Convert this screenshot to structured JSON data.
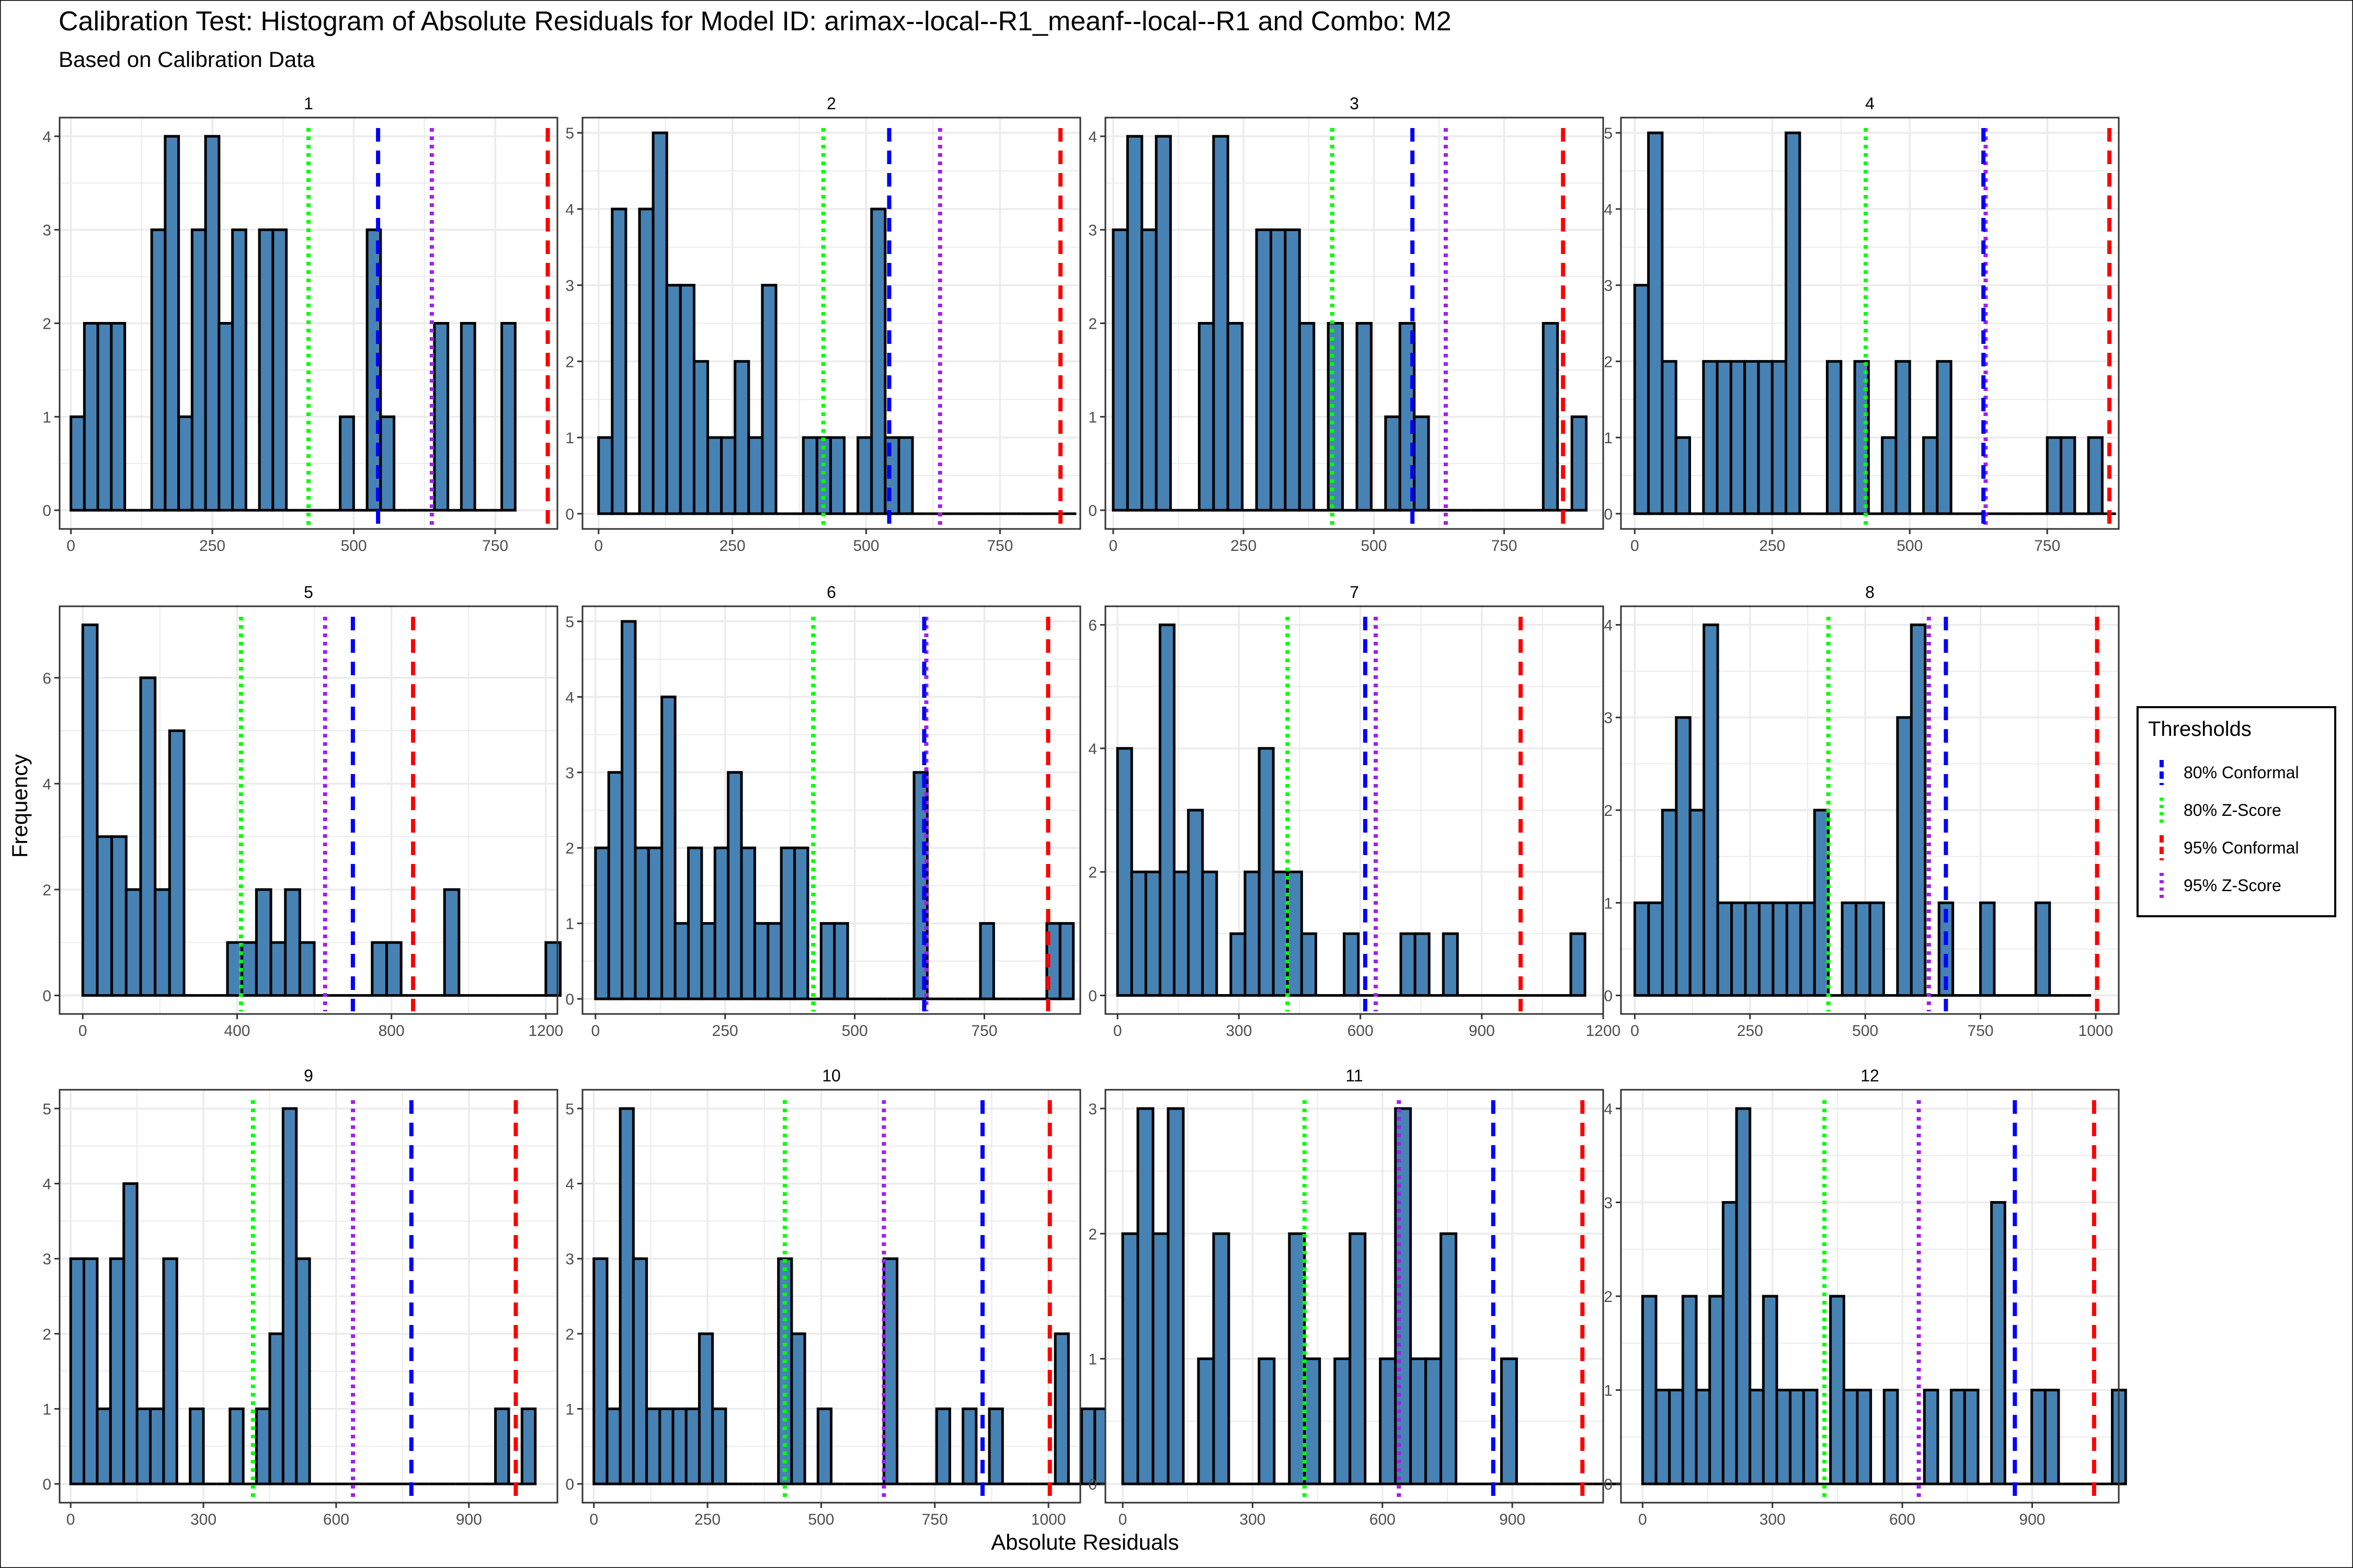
{
  "title": "Calibration Test: Histogram of Absolute Residuals for Model ID: arimax--local--R1_meanf--local--R1 and Combo: M2",
  "subtitle": "Based on Calibration Data",
  "xlabel": "Absolute Residuals",
  "ylabel": "Frequency",
  "legend": {
    "title": "Thresholds",
    "placement": "right",
    "items": [
      {
        "key": "c80",
        "label": "80% Conformal",
        "color": "#0000FF",
        "dash": "dashed"
      },
      {
        "key": "z80",
        "label": "80% Z-Score",
        "color": "#00FF00",
        "dash": "dotted"
      },
      {
        "key": "c95",
        "label": "95% Conformal",
        "color": "#FF0000",
        "dash": "dashed"
      },
      {
        "key": "z95",
        "label": "95% Z-Score",
        "color": "#A020F0",
        "dash": "dotted"
      }
    ]
  },
  "colors": {
    "bar_fill": "#4682B4",
    "bar_outline": "#000000",
    "grid": "#EBEBEB",
    "panel_border": "#333333"
  },
  "chart_data": {
    "type": "bar",
    "grid": true,
    "facet_layout": "3 rows x 4 columns",
    "panels": [
      {
        "label": "1",
        "binwidth": 23.8,
        "x_start": 0,
        "xlim": [
          -20,
          860
        ],
        "ylim": [
          -0.2,
          4.2
        ],
        "xticks": [
          0,
          250,
          500,
          750
        ],
        "yticks": [
          0,
          1,
          2,
          3,
          4
        ],
        "counts": [
          1,
          2,
          2,
          2,
          0,
          0,
          3,
          4,
          1,
          3,
          4,
          2,
          3,
          0,
          3,
          3,
          0,
          0,
          0,
          0,
          1,
          0,
          3,
          1,
          0,
          0,
          0,
          2,
          0,
          2,
          0,
          0,
          2
        ],
        "thresholds": {
          "c80": 543,
          "z80": 420,
          "c95": 843,
          "z95": 638
        }
      },
      {
        "label": "2",
        "binwidth": 25.5,
        "x_start": 0,
        "xlim": [
          -30,
          900
        ],
        "ylim": [
          -0.2,
          5.2
        ],
        "xticks": [
          0,
          250,
          500,
          750
        ],
        "yticks": [
          0,
          1,
          2,
          3,
          4,
          5
        ],
        "counts": [
          1,
          4,
          0,
          4,
          5,
          3,
          3,
          2,
          1,
          1,
          2,
          1,
          3,
          0,
          0,
          1,
          1,
          1,
          0,
          1,
          4,
          1,
          1,
          0,
          0,
          0,
          0,
          0,
          0,
          0,
          0,
          0,
          0,
          0,
          0
        ],
        "thresholds": {
          "c80": 543,
          "z80": 420,
          "c95": 863,
          "z95": 638
        }
      },
      {
        "label": "3",
        "binwidth": 27.5,
        "x_start": 0,
        "xlim": [
          -15,
          940
        ],
        "ylim": [
          -0.2,
          4.2
        ],
        "xticks": [
          0,
          250,
          500,
          750
        ],
        "yticks": [
          0,
          1,
          2,
          3,
          4
        ],
        "counts": [
          3,
          4,
          3,
          4,
          0,
          0,
          2,
          4,
          2,
          0,
          3,
          3,
          3,
          2,
          0,
          2,
          0,
          2,
          0,
          1,
          2,
          1,
          0,
          0,
          0,
          0,
          0,
          0,
          0,
          0,
          2,
          0,
          1
        ],
        "thresholds": {
          "c80": 574,
          "z80": 420,
          "c95": 863,
          "z95": 638
        }
      },
      {
        "label": "4",
        "binwidth": 25,
        "x_start": 0,
        "xlim": [
          -25,
          880
        ],
        "ylim": [
          -0.2,
          5.2
        ],
        "xticks": [
          0,
          250,
          500,
          750
        ],
        "yticks": [
          0,
          1,
          2,
          3,
          4,
          5
        ],
        "counts": [
          3,
          5,
          2,
          1,
          0,
          2,
          2,
          2,
          2,
          2,
          2,
          5,
          0,
          0,
          2,
          0,
          2,
          0,
          1,
          2,
          0,
          1,
          2,
          0,
          0,
          0,
          0,
          0,
          0,
          0,
          1,
          1,
          0,
          1,
          0
        ],
        "thresholds": {
          "c80": 634,
          "z80": 420,
          "c95": 863,
          "z95": 638
        }
      },
      {
        "label": "5",
        "binwidth": 37.5,
        "x_start": 0,
        "xlim": [
          -60,
          1230
        ],
        "ylim": [
          -0.35,
          7.35
        ],
        "xticks": [
          0,
          400,
          800,
          1200
        ],
        "yticks": [
          0,
          2,
          4,
          6
        ],
        "counts": [
          7,
          3,
          3,
          2,
          6,
          2,
          5,
          0,
          0,
          0,
          1,
          1,
          2,
          1,
          2,
          1,
          0,
          0,
          0,
          0,
          1,
          1,
          0,
          0,
          0,
          2,
          0,
          0,
          0,
          0,
          0,
          0,
          1
        ],
        "thresholds": {
          "c80": 700,
          "z80": 410,
          "c95": 856,
          "z95": 628
        }
      },
      {
        "label": "6",
        "binwidth": 25.6,
        "x_start": 0,
        "xlim": [
          -25,
          935
        ],
        "ylim": [
          -0.2,
          5.2
        ],
        "xticks": [
          0,
          250,
          500,
          750
        ],
        "yticks": [
          0,
          1,
          2,
          3,
          4,
          5
        ],
        "counts": [
          2,
          3,
          5,
          2,
          2,
          4,
          1,
          2,
          1,
          2,
          3,
          2,
          1,
          1,
          2,
          2,
          0,
          1,
          1,
          0,
          0,
          0,
          0,
          0,
          3,
          0,
          0,
          0,
          0,
          1,
          0,
          0,
          0,
          0,
          1,
          1
        ],
        "thresholds": {
          "c80": 634,
          "z80": 420,
          "c95": 873,
          "z95": 638
        }
      },
      {
        "label": "7",
        "binwidth": 35,
        "x_start": 0,
        "xlim": [
          -30,
          1200
        ],
        "ylim": [
          -0.3,
          6.3
        ],
        "xticks": [
          0,
          300,
          600,
          900,
          1200
        ],
        "yticks": [
          0,
          2,
          4,
          6
        ],
        "counts": [
          4,
          2,
          2,
          6,
          2,
          3,
          2,
          0,
          1,
          2,
          4,
          2,
          2,
          1,
          0,
          0,
          1,
          0,
          0,
          0,
          1,
          1,
          0,
          1,
          0,
          0,
          0,
          0,
          0,
          0,
          0,
          0,
          1
        ],
        "thresholds": {
          "c80": 612,
          "z80": 420,
          "c95": 996,
          "z95": 638
        }
      },
      {
        "label": "8",
        "binwidth": 30,
        "x_start": 0,
        "xlim": [
          -30,
          1050
        ],
        "ylim": [
          -0.2,
          4.2
        ],
        "xticks": [
          0,
          250,
          500,
          750,
          1000
        ],
        "yticks": [
          0,
          1,
          2,
          3,
          4
        ],
        "counts": [
          1,
          1,
          2,
          3,
          2,
          4,
          1,
          1,
          1,
          1,
          1,
          1,
          1,
          2,
          0,
          1,
          1,
          1,
          0,
          3,
          4,
          0,
          1,
          0,
          0,
          1,
          0,
          0,
          0,
          1,
          0,
          0,
          0
        ],
        "thresholds": {
          "c80": 675,
          "z80": 420,
          "c95": 1003,
          "z95": 638
        }
      },
      {
        "label": "9",
        "binwidth": 30,
        "x_start": 0,
        "xlim": [
          -25,
          1100
        ],
        "ylim": [
          -0.25,
          5.25
        ],
        "xticks": [
          0,
          300,
          600,
          900
        ],
        "yticks": [
          0,
          1,
          2,
          3,
          4,
          5
        ],
        "counts": [
          3,
          3,
          1,
          3,
          4,
          1,
          1,
          3,
          0,
          1,
          0,
          0,
          1,
          0,
          1,
          2,
          5,
          3,
          0,
          0,
          0,
          0,
          0,
          0,
          0,
          0,
          0,
          0,
          0,
          0,
          0,
          0,
          1,
          0,
          1
        ],
        "thresholds": {
          "c80": 770,
          "z80": 412,
          "c95": 1006,
          "z95": 638
        }
      },
      {
        "label": "10",
        "binwidth": 29,
        "x_start": 0,
        "xlim": [
          -25,
          1070
        ],
        "ylim": [
          -0.25,
          5.25
        ],
        "xticks": [
          0,
          250,
          500,
          750,
          1000
        ],
        "yticks": [
          0,
          1,
          2,
          3,
          4,
          5
        ],
        "counts": [
          3,
          1,
          5,
          3,
          1,
          1,
          1,
          1,
          2,
          1,
          0,
          0,
          0,
          0,
          3,
          2,
          0,
          1,
          0,
          0,
          0,
          0,
          3,
          0,
          0,
          0,
          1,
          0,
          1,
          0,
          1,
          0,
          0,
          0,
          0,
          2,
          0,
          1,
          1
        ],
        "thresholds": {
          "c80": 855,
          "z80": 420,
          "c95": 1003,
          "z95": 638
        }
      },
      {
        "label": "11",
        "binwidth": 35,
        "x_start": 0,
        "xlim": [
          -40,
          1110
        ],
        "ylim": [
          -0.15,
          3.15
        ],
        "xticks": [
          0,
          300,
          600,
          900
        ],
        "yticks": [
          0,
          1,
          2,
          3
        ],
        "counts": [
          2,
          3,
          2,
          3,
          0,
          1,
          2,
          0,
          0,
          1,
          0,
          2,
          1,
          0,
          1,
          2,
          0,
          1,
          3,
          1,
          1,
          2,
          0,
          0,
          0,
          1,
          0,
          0,
          0,
          0,
          0,
          0,
          0,
          0,
          0,
          0,
          1
        ],
        "thresholds": {
          "c80": 856,
          "z80": 420,
          "c95": 1062,
          "z95": 638
        }
      },
      {
        "label": "12",
        "binwidth": 31,
        "x_start": 0,
        "xlim": [
          -50,
          1100
        ],
        "ylim": [
          -0.2,
          4.2
        ],
        "xticks": [
          0,
          300,
          600,
          900
        ],
        "yticks": [
          0,
          1,
          2,
          3,
          4
        ],
        "counts": [
          2,
          1,
          1,
          2,
          1,
          2,
          3,
          4,
          1,
          2,
          1,
          1,
          1,
          0,
          2,
          1,
          1,
          0,
          1,
          0,
          0,
          1,
          0,
          1,
          1,
          0,
          3,
          0,
          0,
          1,
          1,
          0,
          0,
          0,
          0,
          1
        ],
        "thresholds": {
          "c80": 860,
          "z80": 420,
          "c95": 1043,
          "z95": 638
        }
      }
    ]
  }
}
